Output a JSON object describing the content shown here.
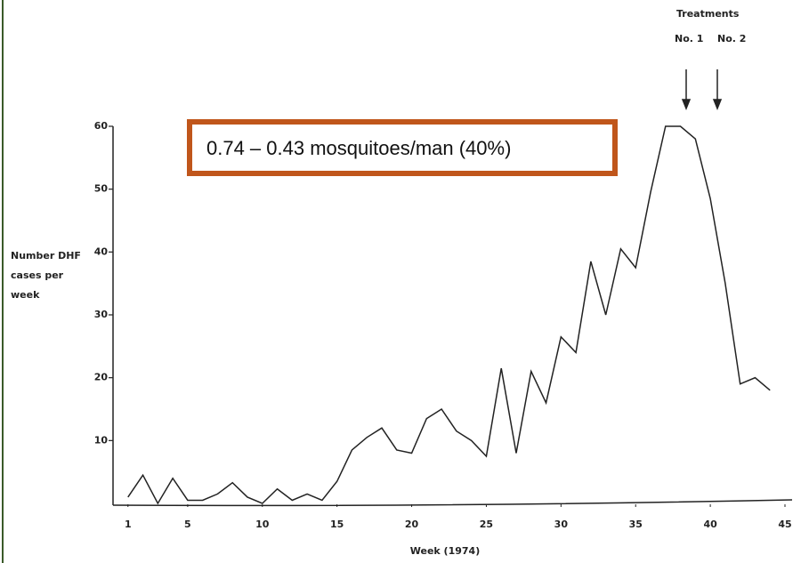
{
  "chart_data": {
    "type": "line",
    "annotation": "0.74 – 0.43 mosquitoes/man (40%)",
    "treatments_label": "Treatments",
    "treatment_marks": [
      "No. 1",
      "No. 2"
    ],
    "y_label_lines": [
      "Number DHF",
      "cases per",
      "week"
    ],
    "x_label": "Week (1974)",
    "x": [
      1,
      2,
      3,
      4,
      5,
      6,
      7,
      8,
      9,
      10,
      11,
      12,
      13,
      14,
      15,
      16,
      17,
      18,
      19,
      20,
      21,
      22,
      23,
      24,
      25,
      26,
      27,
      28,
      29,
      30,
      31,
      32,
      33,
      34,
      35,
      36,
      37,
      38,
      39,
      40,
      41,
      42,
      43,
      44
    ],
    "series": [
      {
        "name": "DHF cases",
        "color": "#222222",
        "values": [
          1,
          4.5,
          0,
          4,
          0.5,
          0.5,
          1.5,
          3.3,
          1,
          0,
          2.3,
          0.5,
          1.5,
          0.5,
          3.5,
          8.5,
          10.5,
          12,
          8.5,
          8,
          13.5,
          15,
          11.5,
          10,
          7.5,
          21.5,
          8,
          21,
          16,
          26.5,
          24,
          38.5,
          30,
          40.5,
          37.5,
          49.5,
          60,
          60,
          58,
          48.5,
          35,
          19,
          20,
          18
        ]
      }
    ],
    "xlim": [
      0,
      45
    ],
    "ylim": [
      0,
      60
    ],
    "xticks": [
      1,
      5,
      10,
      15,
      20,
      25,
      30,
      35,
      40,
      45
    ],
    "yticks": [
      10,
      20,
      30,
      40,
      50,
      60
    ]
  }
}
